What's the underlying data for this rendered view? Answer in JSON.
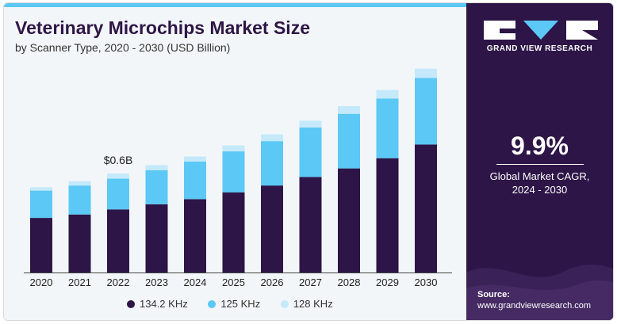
{
  "header": {
    "title": "Veterinary Microchips Market Size",
    "subtitle": "by Scanner Type, 2020 - 2030 (USD Billion)"
  },
  "brand": {
    "name": "GRAND VIEW RESEARCH",
    "logo_icon": "gvr-logo-icon"
  },
  "stat": {
    "value": "9.9%",
    "label_line1": "Global Market CAGR,",
    "label_line2": "2024 - 2030"
  },
  "source": {
    "label": "Source:",
    "url": "www.grandviewresearch.com"
  },
  "colors": {
    "series1": "#2d1547",
    "series2": "#5bc8f5",
    "series3": "#c4e9fa",
    "accent": "#5bc8f5",
    "panel": "#2d1547"
  },
  "chart_data": {
    "type": "bar",
    "stacked": true,
    "categories": [
      "2020",
      "2021",
      "2022",
      "2023",
      "2024",
      "2025",
      "2026",
      "2027",
      "2028",
      "2029",
      "2030"
    ],
    "series": [
      {
        "name": "134.2 KHz",
        "values": [
          0.32,
          0.34,
          0.37,
          0.4,
          0.43,
          0.47,
          0.51,
          0.56,
          0.61,
          0.67,
          0.75
        ]
      },
      {
        "name": "125 KHz",
        "values": [
          0.16,
          0.17,
          0.18,
          0.2,
          0.22,
          0.24,
          0.26,
          0.29,
          0.32,
          0.35,
          0.39
        ]
      },
      {
        "name": "128 KHz",
        "values": [
          0.02,
          0.025,
          0.03,
          0.03,
          0.03,
          0.035,
          0.04,
          0.04,
          0.045,
          0.05,
          0.055
        ]
      }
    ],
    "annotations": [
      {
        "category": "2022",
        "text": "$0.6B"
      }
    ],
    "ylim": [
      0,
      1.3
    ],
    "legend": "bottom",
    "grid": false,
    "axis_line": true
  }
}
